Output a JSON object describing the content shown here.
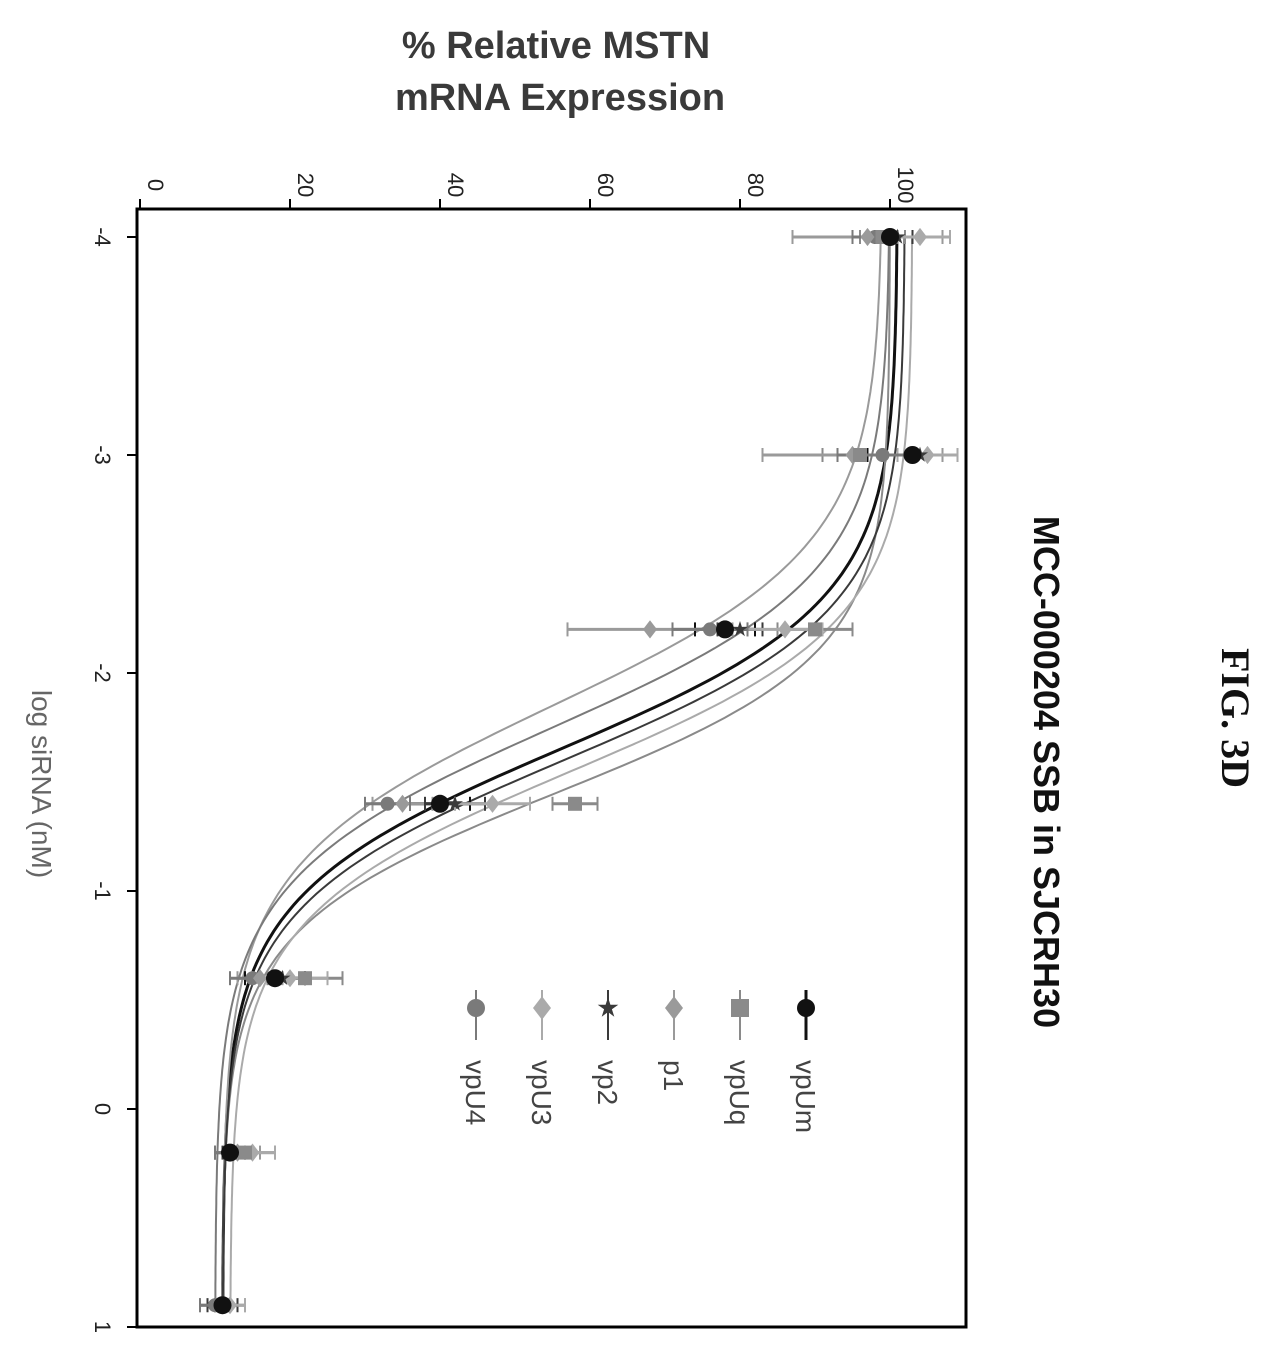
{
  "figure_label": "FIG. 3D",
  "chart_data": {
    "type": "line",
    "title": "MCC-000204 SSB in  SJCRH30",
    "xlabel": "log siRNA (nM)",
    "ylabel_lines": [
      "% Relative MSTN",
      "mRNA Expression"
    ],
    "xlim": [
      -4,
      1
    ],
    "ylim": [
      0,
      110
    ],
    "x_ticks": [
      -4,
      -3,
      -2,
      -1,
      0,
      1
    ],
    "y_ticks": [
      0,
      20,
      40,
      60,
      80,
      100
    ],
    "x_tick_labels": [
      "-4",
      "-3",
      "-2",
      "-1",
      "0",
      "1"
    ],
    "y_tick_labels": [
      "0",
      "20",
      "40",
      "60",
      "80",
      "100"
    ],
    "grid": false,
    "legend_position": "right",
    "orientation": "rotated 90° clockwise",
    "x": [
      -4,
      -3,
      -2.2,
      -1.4,
      -0.6,
      0.2,
      0.9
    ],
    "series": [
      {
        "name": "vpUm",
        "color": "#111111",
        "marker": "circle",
        "values": [
          100,
          103,
          78,
          40,
          18,
          12,
          11
        ],
        "errors": [
          2,
          6,
          4,
          4,
          4,
          2,
          1
        ],
        "fit": {
          "bottom": 11,
          "top": 101,
          "logIC50": -1.65,
          "hill": 1.3
        }
      },
      {
        "name": "vpUq",
        "color": "#8a8a8a",
        "marker": "square",
        "values": [
          99,
          96,
          90,
          58,
          22,
          14,
          11
        ],
        "errors": [
          3,
          5,
          5,
          3,
          5,
          4,
          3
        ],
        "fit": {
          "bottom": 11,
          "top": 100,
          "logIC50": -1.45,
          "hill": 1.4
        }
      },
      {
        "name": "p1",
        "color": "#9a9a9a",
        "marker": "diamond",
        "values": [
          97,
          95,
          68,
          35,
          16,
          13,
          11
        ],
        "errors": [
          10,
          12,
          11,
          4,
          3,
          3,
          2
        ],
        "fit": {
          "bottom": 11,
          "top": 99,
          "logIC50": -1.85,
          "hill": 1.2
        }
      },
      {
        "name": "vp2",
        "color": "#3a3a3a",
        "marker": "star",
        "values": [
          101,
          104,
          80,
          42,
          19,
          13,
          11
        ],
        "errors": [
          2,
          5,
          3,
          4,
          3,
          2,
          2
        ],
        "fit": {
          "bottom": 11,
          "top": 102,
          "logIC50": -1.6,
          "hill": 1.3
        }
      },
      {
        "name": "vpU3",
        "color": "#aaaaaa",
        "marker": "diamond",
        "values": [
          104,
          105,
          86,
          47,
          20,
          15,
          12
        ],
        "errors": [
          4,
          4,
          5,
          5,
          5,
          3,
          2
        ],
        "fit": {
          "bottom": 12,
          "top": 103,
          "logIC50": -1.55,
          "hill": 1.3
        }
      },
      {
        "name": "vpU4",
        "color": "#7a7a7a",
        "marker": "circle",
        "values": [
          98,
          99,
          76,
          33,
          15,
          12,
          10
        ],
        "errors": [
          3,
          6,
          5,
          3,
          3,
          2,
          2
        ],
        "fit": {
          "bottom": 10,
          "top": 100,
          "logIC50": -1.75,
          "hill": 1.25
        }
      }
    ]
  }
}
